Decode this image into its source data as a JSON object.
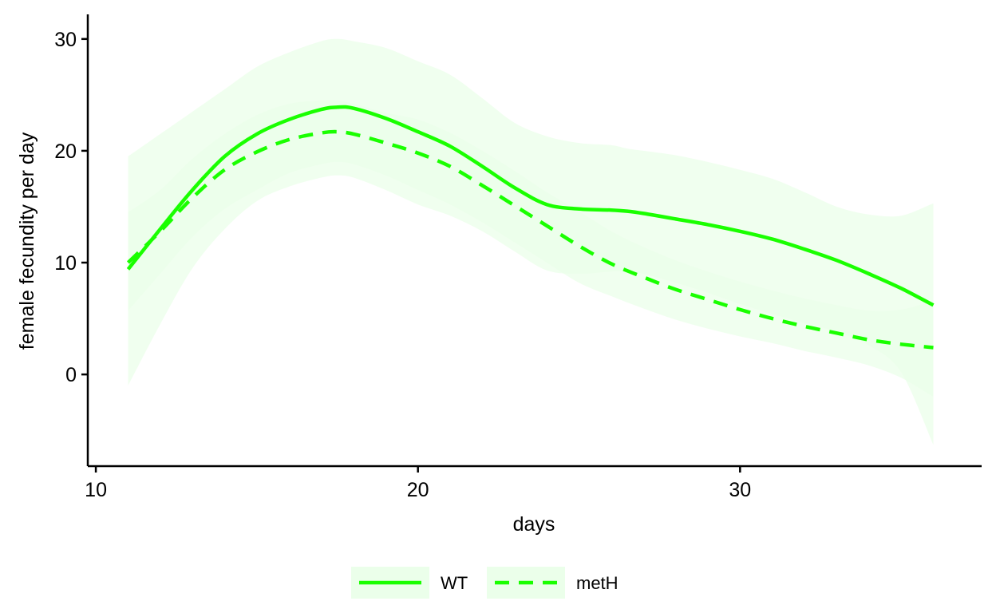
{
  "chart_data": {
    "type": "line",
    "xlabel": "days",
    "ylabel": "female fecundity per day",
    "xlim": [
      9.75,
      37.5
    ],
    "ylim": [
      -8.2,
      32.2
    ],
    "xticks": [
      10,
      20,
      30
    ],
    "yticks": [
      0,
      10,
      20,
      30
    ],
    "grid": false,
    "legend_position": "bottom",
    "line_color": "#1aff00",
    "band_color": "#ebffea",
    "series": [
      {
        "name": "WT",
        "linestyle": "solid",
        "x": [
          11,
          12,
          13,
          14,
          15,
          16,
          17,
          17.5,
          18,
          19,
          20,
          21,
          22,
          23,
          24,
          25,
          26,
          26.5,
          27,
          28,
          29,
          30,
          31,
          32,
          33,
          34,
          35,
          36
        ],
        "y": [
          9.4,
          13.0,
          16.5,
          19.5,
          21.5,
          22.8,
          23.7,
          23.9,
          23.8,
          22.9,
          21.7,
          20.4,
          18.6,
          16.7,
          15.2,
          14.8,
          14.7,
          14.6,
          14.4,
          13.9,
          13.4,
          12.8,
          12.1,
          11.2,
          10.2,
          9.0,
          7.7,
          6.2
        ],
        "lower": [
          -1.0,
          4.5,
          9.5,
          13.0,
          15.5,
          16.8,
          17.6,
          17.8,
          17.6,
          16.5,
          15.2,
          14.2,
          12.8,
          11.0,
          9.3,
          9.0,
          9.2,
          9.2,
          9.0,
          8.2,
          7.3,
          6.3,
          5.4,
          4.6,
          3.8,
          2.6,
          0.2,
          -6.3
        ],
        "upper": [
          19.5,
          21.5,
          23.5,
          25.5,
          27.5,
          28.8,
          29.8,
          30.0,
          29.8,
          29.2,
          28.0,
          26.8,
          24.7,
          22.5,
          21.3,
          20.7,
          20.5,
          20.2,
          20.0,
          19.6,
          19.0,
          18.3,
          17.5,
          16.3,
          15.0,
          14.3,
          14.2,
          15.3
        ]
      },
      {
        "name": "metH",
        "linestyle": "dashed",
        "x": [
          11,
          12,
          13,
          14,
          15,
          16,
          17,
          17.5,
          18,
          19,
          20,
          21,
          22,
          23,
          24,
          25,
          26,
          27,
          28,
          29,
          30,
          31,
          32,
          33,
          34,
          35,
          36
        ],
        "y": [
          10.0,
          12.8,
          15.8,
          18.3,
          19.9,
          21.0,
          21.6,
          21.7,
          21.5,
          20.7,
          19.8,
          18.6,
          16.9,
          15.1,
          13.3,
          11.5,
          9.9,
          8.7,
          7.6,
          6.7,
          5.8,
          5.0,
          4.3,
          3.7,
          3.1,
          2.7,
          2.4
        ],
        "lower": [
          5.7,
          9.0,
          12.3,
          14.8,
          16.5,
          18.0,
          18.8,
          19.0,
          18.8,
          17.8,
          16.5,
          15.2,
          13.6,
          11.8,
          10.0,
          8.2,
          7.0,
          5.9,
          4.9,
          4.1,
          3.4,
          2.8,
          2.1,
          1.5,
          0.8,
          -0.3,
          -2.0
        ],
        "upper": [
          14.5,
          16.5,
          19.3,
          21.5,
          23.2,
          24.2,
          24.5,
          24.5,
          24.2,
          23.4,
          22.8,
          21.6,
          20.0,
          18.2,
          16.3,
          14.6,
          12.8,
          11.4,
          10.2,
          9.2,
          8.3,
          7.5,
          6.8,
          6.2,
          5.7,
          5.8,
          6.6
        ]
      }
    ]
  }
}
